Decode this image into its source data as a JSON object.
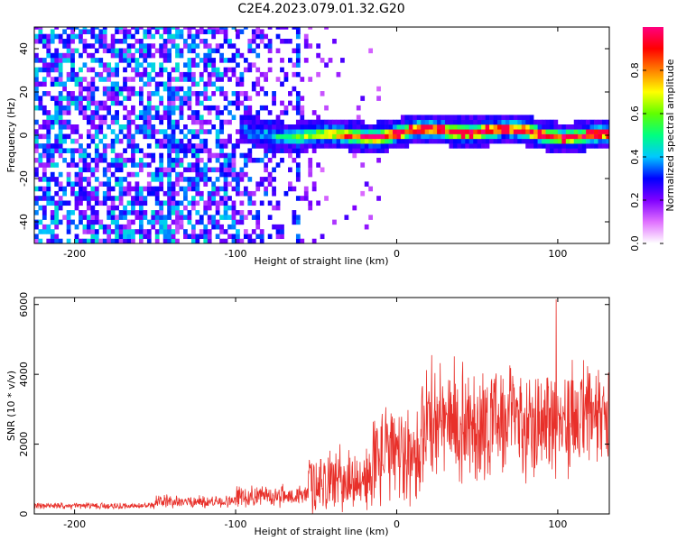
{
  "title": "C2E4.2023.079.01.32.G20",
  "chart_data": [
    {
      "type": "heatmap",
      "xlabel": "Height of straight line (km)",
      "ylabel": "Frequency (Hz)",
      "xlim": [
        -225,
        132
      ],
      "ylim": [
        -50,
        50
      ],
      "xticks": [
        -200,
        -100,
        0,
        100
      ],
      "yticks": [
        -40,
        -20,
        0,
        20,
        40
      ],
      "colorbar": {
        "label": "Normalized spectral amplitude",
        "range": [
          0,
          1
        ],
        "ticks": [
          "0.0",
          "0.2",
          "0.4",
          "0.6",
          "0.8"
        ],
        "colormap": [
          "#ffffff",
          "#e070ff",
          "#8000ff",
          "#0000ff",
          "#00c8ff",
          "#00ff80",
          "#60ff00",
          "#ffff00",
          "#ff8000",
          "#ff0000",
          "#ff0080"
        ]
      },
      "features": {
        "noise_region_x": [
          -225,
          -45
        ],
        "signal_band_start_x": -100,
        "signal_band_center_hz": 1,
        "signal_band_halfwidth_hz": 4
      },
      "grid": false
    },
    {
      "type": "line",
      "xlabel": "Height of straight line (km)",
      "ylabel": "SNR (10 * v/v)",
      "xlim": [
        -225,
        132
      ],
      "ylim": [
        0,
        6200
      ],
      "xticks": [
        -200,
        -100,
        0,
        100
      ],
      "yticks": [
        0,
        2000,
        4000,
        6000
      ],
      "color": "#e8302a",
      "segments": [
        {
          "x": [
            -225,
            -150
          ],
          "mean": 230,
          "amp": 90
        },
        {
          "x": [
            -150,
            -100
          ],
          "mean": 350,
          "amp": 180
        },
        {
          "x": [
            -100,
            -55
          ],
          "mean": 520,
          "amp": 300
        },
        {
          "x": [
            -55,
            -15
          ],
          "mean": 950,
          "amp": 900
        },
        {
          "x": [
            -15,
            15
          ],
          "mean": 1700,
          "amp": 1400
        },
        {
          "x": [
            15,
            60
          ],
          "mean": 2600,
          "amp": 1700
        },
        {
          "x": [
            60,
            132
          ],
          "mean": 2700,
          "amp": 1600
        }
      ],
      "peak": {
        "x": 99,
        "y": 6150
      },
      "grid": false
    }
  ]
}
